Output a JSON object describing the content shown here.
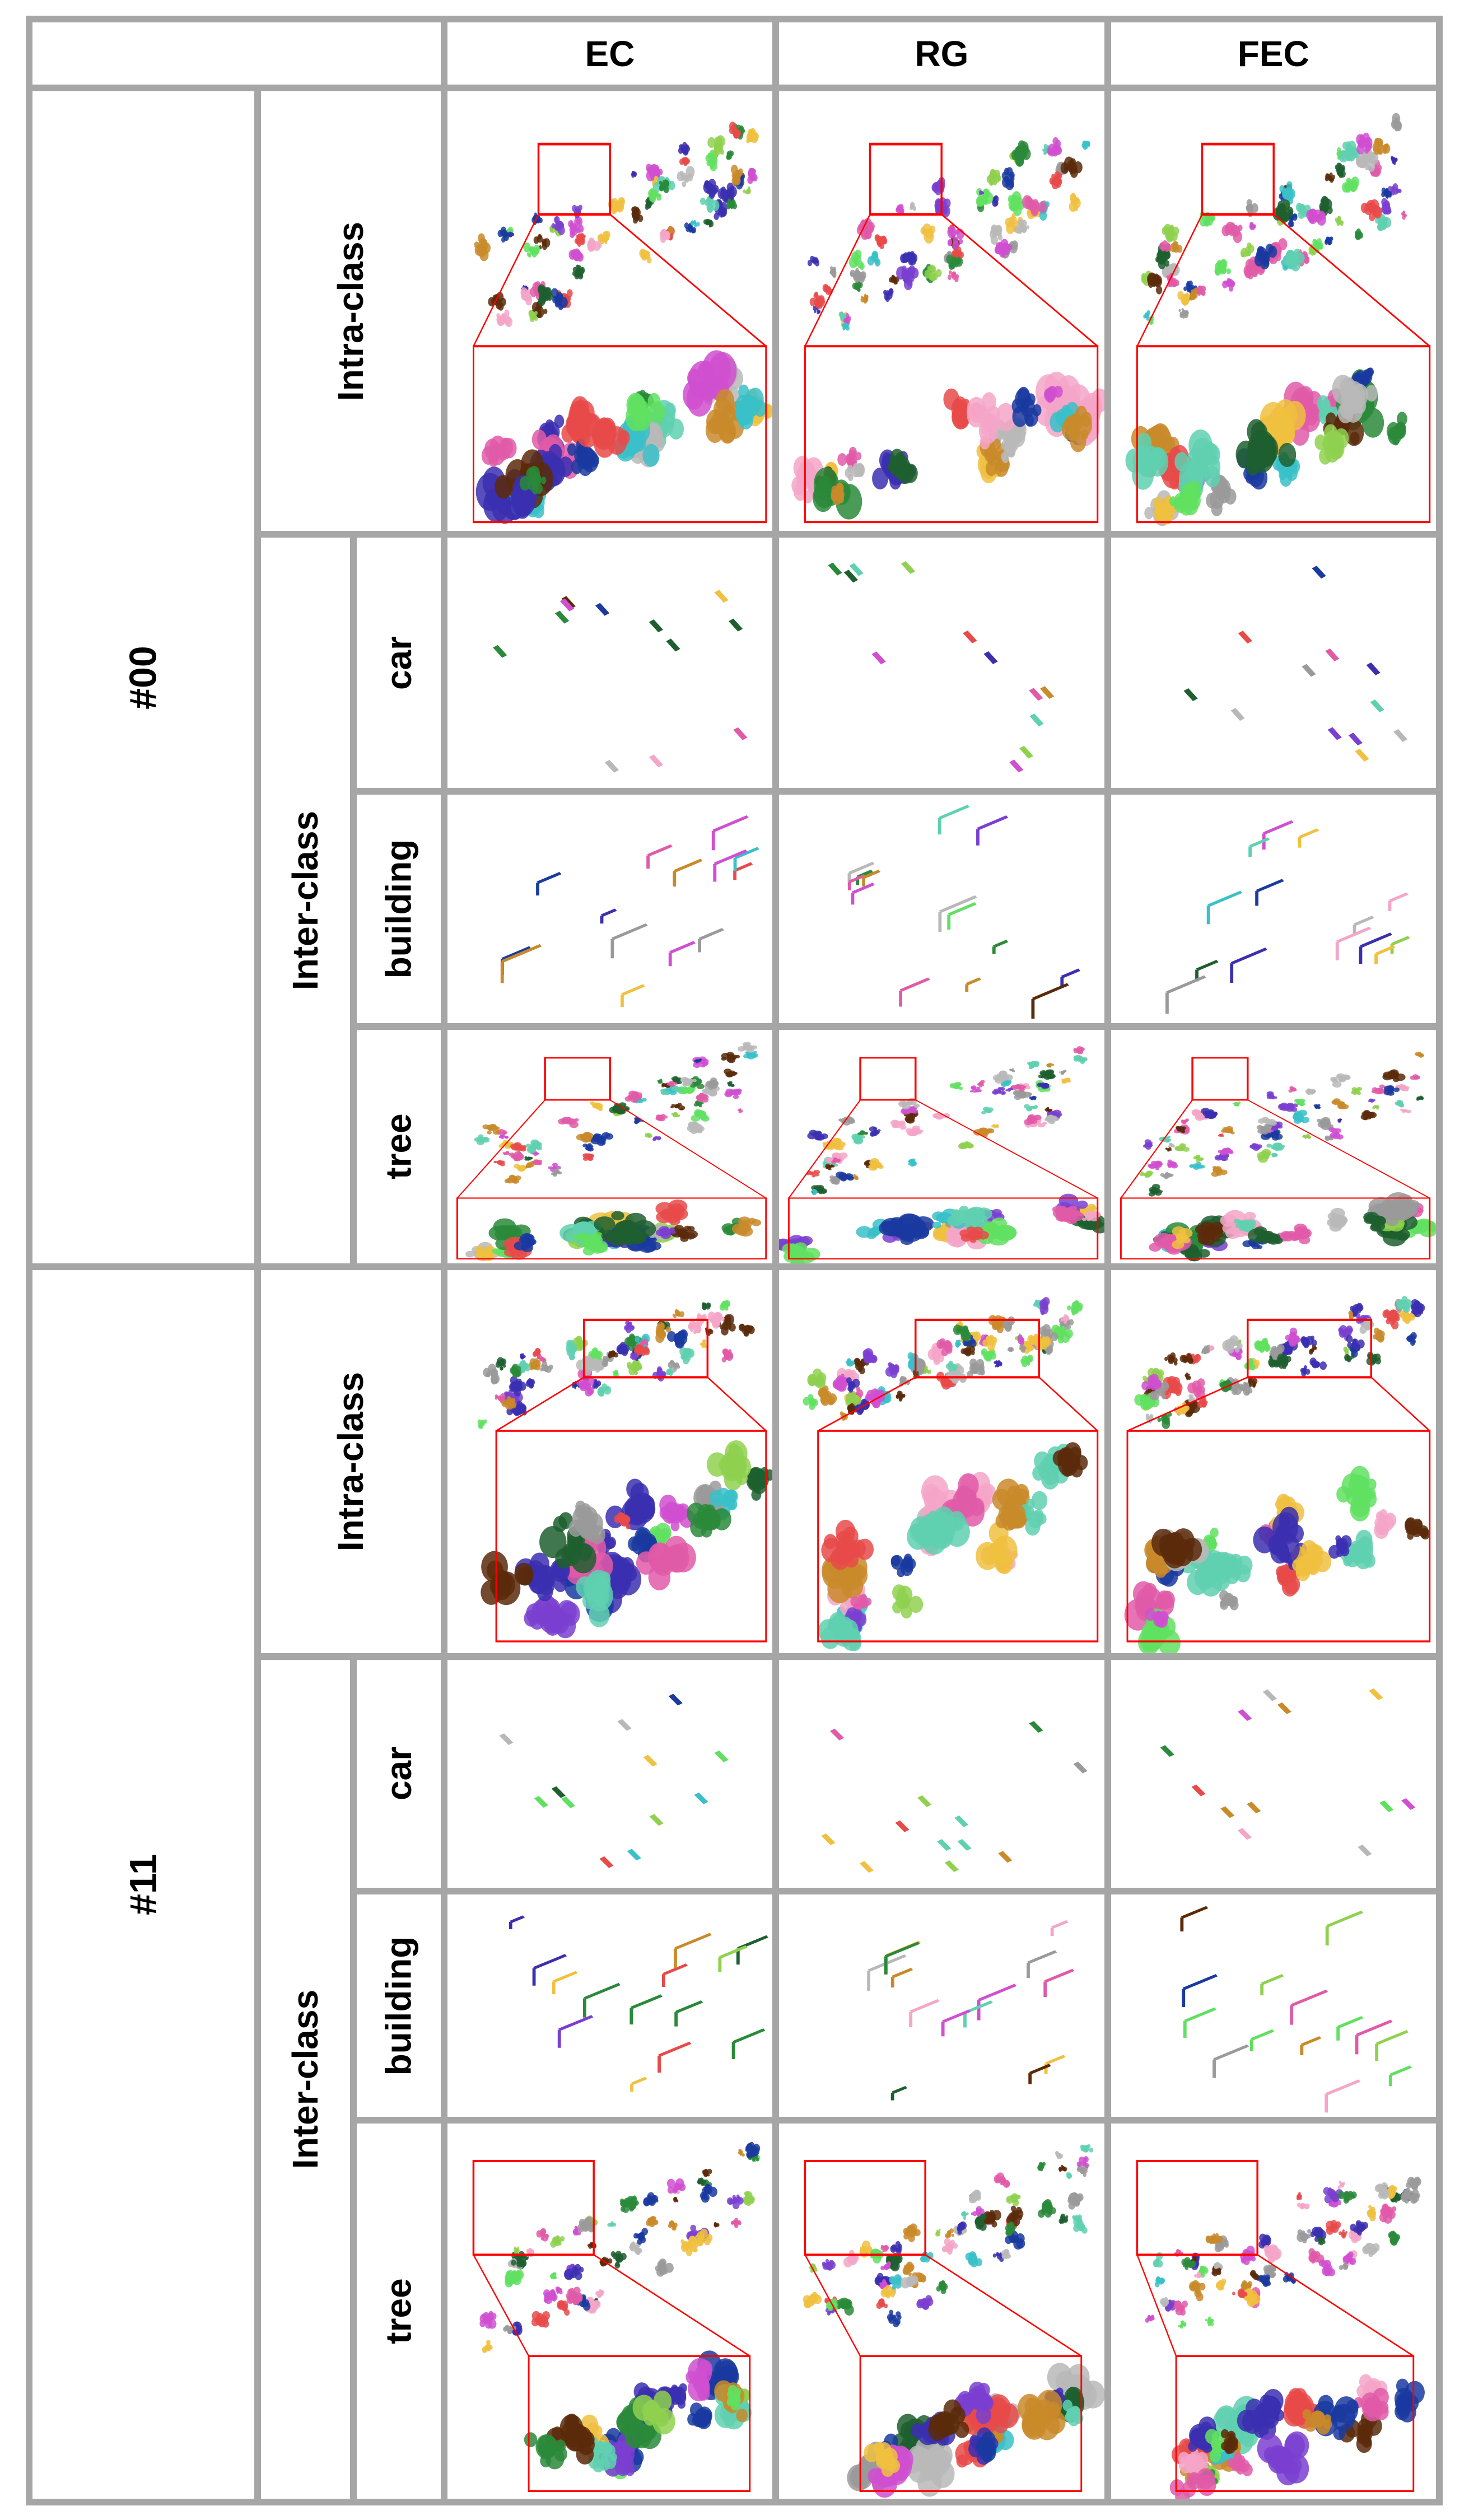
{
  "header": {
    "methods": [
      "EC",
      "RG",
      "FEC"
    ]
  },
  "sequences": [
    {
      "label": "#00",
      "intra_label": "Intra-class",
      "inter_label": "Inter-class",
      "classes": [
        "car",
        "building",
        "tree"
      ]
    },
    {
      "label": "#11",
      "intra_label": "Intra-class",
      "inter_label": "Inter-class",
      "classes": [
        "car",
        "building",
        "tree"
      ]
    }
  ],
  "colors": {
    "grid_border": "#a6a6a6",
    "zoom_box": "#ff0000",
    "palette": [
      "#3b2fb0",
      "#5fd0b0",
      "#e05aa8",
      "#8fd14f",
      "#2a8a3a",
      "#c98a2a",
      "#7a3fd0",
      "#e84a4a",
      "#1f5f2f",
      "#9a9a9a",
      "#f4a6c8",
      "#3ac0c8",
      "#b8b8b8",
      "#5a2a0a",
      "#d04fd0",
      "#1a3aa0",
      "#60e060",
      "#f0c040"
    ]
  }
}
